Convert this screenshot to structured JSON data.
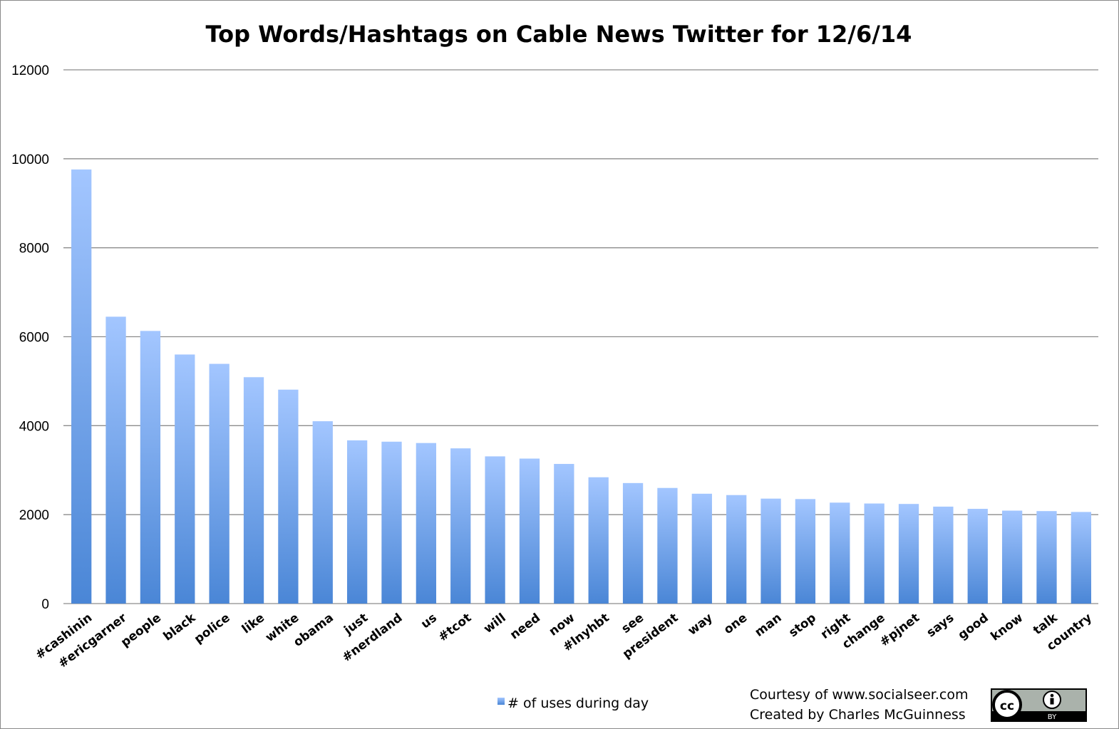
{
  "chart_data": {
    "type": "bar",
    "title": "Top Words/Hashtags on Cable News Twitter for 12/6/14",
    "xlabel": "",
    "ylabel": "",
    "ylim": [
      0,
      12000
    ],
    "yticks": [
      0,
      2000,
      4000,
      6000,
      8000,
      10000,
      12000
    ],
    "grid": true,
    "legend_position": "bottom",
    "bar_color_top": "#a3c6ff",
    "bar_color_bottom": "#4a86d6",
    "categories": [
      "#cashinin",
      "#ericgarner",
      "people",
      "black",
      "police",
      "like",
      "white",
      "obama",
      "just",
      "#nerdland",
      "us",
      "#tcot",
      "will",
      "need",
      "now",
      "#lnyhbt",
      "see",
      "president",
      "way",
      "one",
      "man",
      "stop",
      "right",
      "change",
      "#pjnet",
      "says",
      "good",
      "know",
      "talk",
      "country"
    ],
    "series": [
      {
        "name": "# of uses during day",
        "values": [
          9760,
          6450,
          6130,
          5600,
          5390,
          5090,
          4810,
          4100,
          3670,
          3640,
          3610,
          3490,
          3310,
          3260,
          3140,
          2840,
          2710,
          2600,
          2470,
          2440,
          2360,
          2350,
          2270,
          2250,
          2240,
          2180,
          2130,
          2090,
          2080,
          2060
        ]
      }
    ]
  },
  "footer": {
    "courtesy": "Courtesy of www.socialseer.com",
    "created_by": "Created by Charles McGuinness",
    "license_badge": "BY"
  }
}
